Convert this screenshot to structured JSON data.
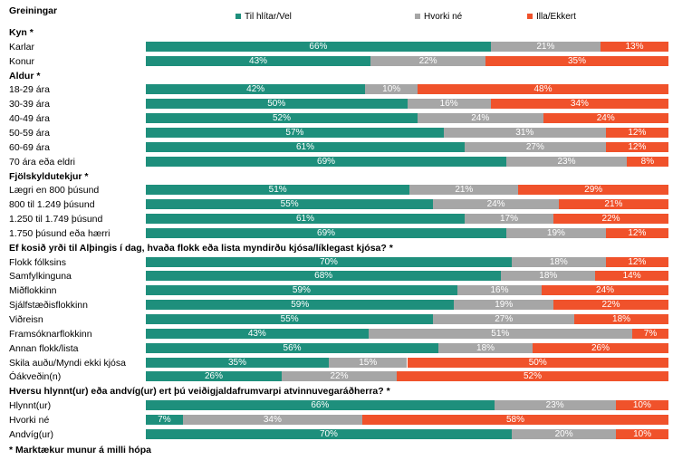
{
  "header_label": "Greiningar",
  "footnote": "* Marktækur munur á milli hópa",
  "colors": {
    "Til hlítar/Vel": "#1e8f7c",
    "Hvorki né": "#a6a6a6",
    "Illa/Ekkert": "#f0522b"
  },
  "chart_data": {
    "type": "bar",
    "orientation": "horizontal-stacked-100",
    "series": [
      {
        "name": "Til hlítar/Vel"
      },
      {
        "name": "Hvorki né"
      },
      {
        "name": "Illa/Ekkert"
      }
    ],
    "groups": [
      {
        "title": "Kyn *",
        "rows": [
          {
            "label": "Karlar",
            "values": [
              66,
              21,
              13
            ]
          },
          {
            "label": "Konur",
            "values": [
              43,
              22,
              35
            ]
          }
        ]
      },
      {
        "title": "Aldur *",
        "rows": [
          {
            "label": "18-29 ára",
            "values": [
              42,
              10,
              48
            ]
          },
          {
            "label": "30-39 ára",
            "values": [
              50,
              16,
              34
            ]
          },
          {
            "label": "40-49 ára",
            "values": [
              52,
              24,
              24
            ]
          },
          {
            "label": "50-59 ára",
            "values": [
              57,
              31,
              12
            ]
          },
          {
            "label": "60-69 ára",
            "values": [
              61,
              27,
              12
            ]
          },
          {
            "label": "70 ára eða eldri",
            "values": [
              69,
              23,
              8
            ]
          }
        ]
      },
      {
        "title": "Fjölskyldutekjur *",
        "rows": [
          {
            "label": "Lægri en 800 þúsund",
            "values": [
              51,
              21,
              29
            ]
          },
          {
            "label": "800 til 1.249 þúsund",
            "values": [
              55,
              24,
              21
            ]
          },
          {
            "label": "1.250 til 1.749 þúsund",
            "values": [
              61,
              17,
              22
            ]
          },
          {
            "label": "1.750 þúsund eða hærri",
            "values": [
              69,
              19,
              12
            ]
          }
        ]
      },
      {
        "title": "Ef kosið yrði til Alþingis í dag, hvaða flokk eða lista myndirðu kjósa/líklegast kjósa? *",
        "rows": [
          {
            "label": "Flokk fólksins",
            "values": [
              70,
              18,
              12
            ]
          },
          {
            "label": "Samfylkinguna",
            "values": [
              68,
              18,
              14
            ]
          },
          {
            "label": "Miðflokkinn",
            "values": [
              59,
              16,
              24
            ]
          },
          {
            "label": "Sjálfstæðisflokkinn",
            "values": [
              59,
              19,
              22
            ]
          },
          {
            "label": "Viðreisn",
            "values": [
              55,
              27,
              18
            ]
          },
          {
            "label": "Framsóknarflokkinn",
            "values": [
              43,
              51,
              7
            ]
          },
          {
            "label": "Annan flokk/lista",
            "values": [
              56,
              18,
              26
            ]
          },
          {
            "label": "Skila auðu/Myndi ekki kjósa",
            "values": [
              35,
              15,
              50
            ]
          },
          {
            "label": "Óákveðin(n)",
            "values": [
              26,
              22,
              52
            ]
          }
        ]
      },
      {
        "title": "Hversu hlynnt(ur) eða andvíg(ur) ert þú veiðigjaldafrumvarpi atvinnuvegaráðherra? *",
        "rows": [
          {
            "label": "Hlynnt(ur)",
            "values": [
              66,
              23,
              10
            ]
          },
          {
            "label": "Hvorki né",
            "values": [
              7,
              34,
              58
            ]
          },
          {
            "label": "Andvíg(ur)",
            "values": [
              70,
              20,
              10
            ]
          }
        ]
      }
    ]
  }
}
